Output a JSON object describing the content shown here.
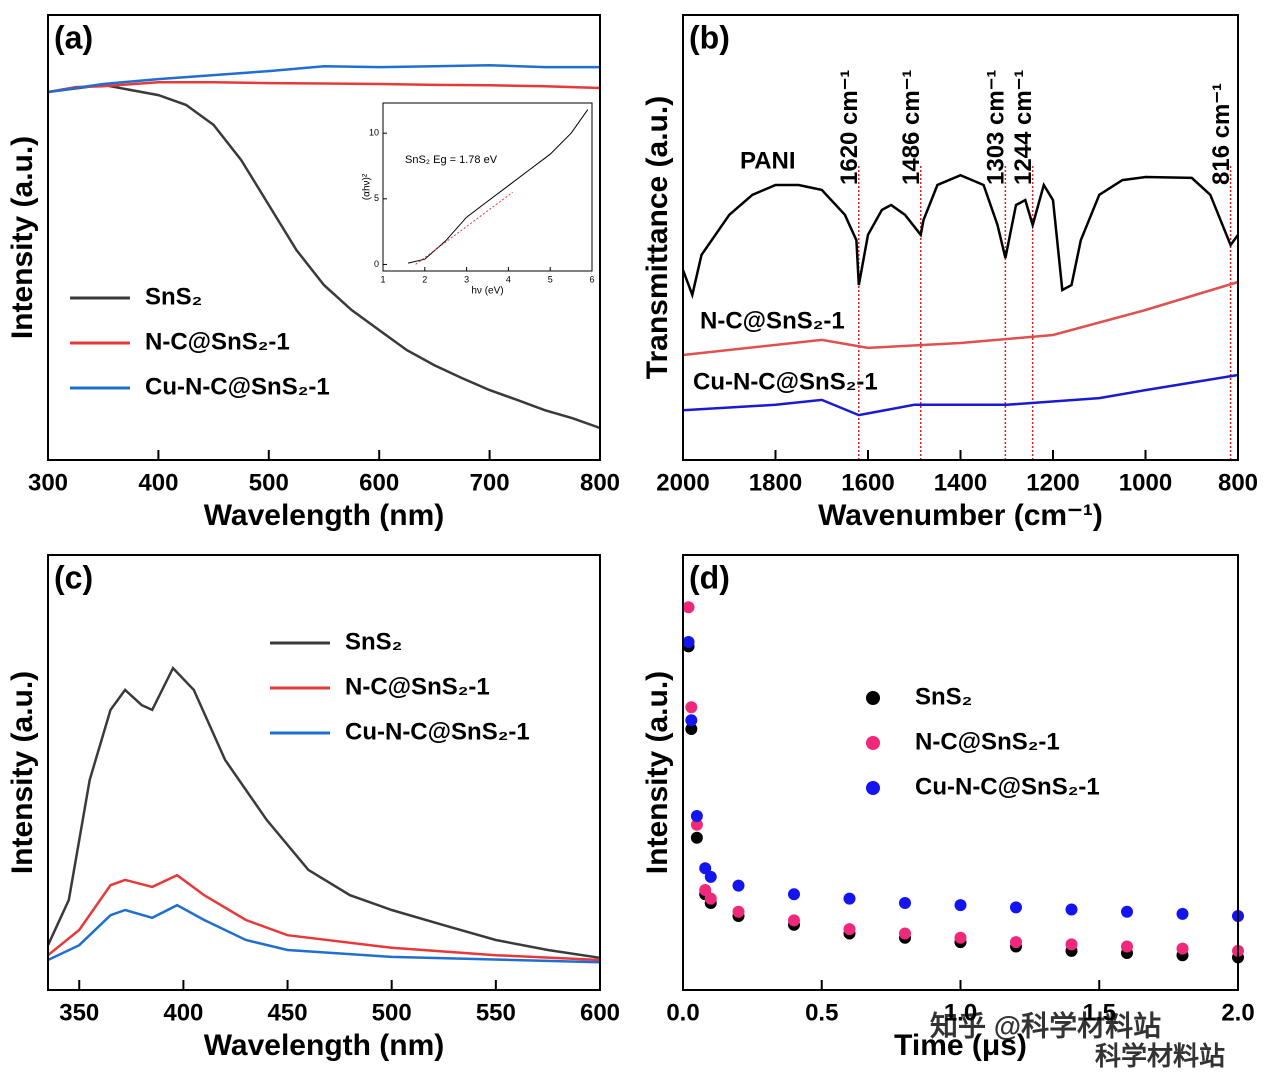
{
  "chart_data": [
    {
      "type": "line",
      "label": "(a)",
      "xlabel": "Wavelength (nm)",
      "ylabel": "Intensity (a.u.)",
      "xlim": [
        300,
        800
      ],
      "ylim": [
        0,
        100
      ],
      "xticks": [
        300,
        400,
        500,
        600,
        700,
        800
      ],
      "legend": "lower left",
      "series": [
        {
          "name": "SnS₂",
          "color": "#3a3a3a",
          "x": [
            300,
            350,
            400,
            425,
            450,
            475,
            500,
            525,
            550,
            575,
            600,
            625,
            650,
            675,
            700,
            725,
            750,
            775,
            800
          ],
          "values": [
            82.7,
            84.3,
            82,
            79.8,
            75.3,
            67.4,
            57.3,
            47.2,
            39.3,
            33.7,
            29.2,
            24.7,
            21.3,
            18.4,
            15.7,
            13.5,
            11.2,
            9.4,
            7.2
          ]
        },
        {
          "name": "N-C@SnS₂-1",
          "color": "#e8393a",
          "x": [
            300,
            325,
            350,
            400,
            450,
            500,
            550,
            600,
            650,
            700,
            750,
            800
          ],
          "values": [
            82.7,
            83.8,
            84,
            84.9,
            84.9,
            84.7,
            84.6,
            84.5,
            84.3,
            84.2,
            84,
            83.6
          ]
        },
        {
          "name": "Cu-N-C@SnS₂-1",
          "color": "#1f6fd1",
          "x": [
            300,
            350,
            400,
            450,
            500,
            550,
            600,
            650,
            700,
            750,
            800
          ],
          "values": [
            82.7,
            84.5,
            85.6,
            86.5,
            87.4,
            88.5,
            88.3,
            88.5,
            88.7,
            88.3,
            88.3
          ]
        }
      ]
    },
    {
      "type": "line",
      "label": "(b)",
      "xlabel": "Wavenumber (cm⁻¹)",
      "ylabel": "Transmittance (a.u.)",
      "xlim": [
        2000,
        800
      ],
      "ylim": [
        0,
        100
      ],
      "xticks": [
        2000,
        1800,
        1600,
        1400,
        1200,
        1000,
        800
      ],
      "legend": "beside lines",
      "annotations": [
        {
          "x": 1620,
          "text": "1620 cm⁻¹"
        },
        {
          "x": 1486,
          "text": "1486 cm⁻¹"
        },
        {
          "x": 1303,
          "text": "1303 cm⁻¹"
        },
        {
          "x": 1244,
          "text": "1244 cm⁻¹"
        },
        {
          "x": 816,
          "text": "816 cm⁻¹"
        }
      ],
      "series": [
        {
          "name": "PANI",
          "color": "#000000",
          "x": [
            2000,
            1980,
            1960,
            1900,
            1850,
            1800,
            1750,
            1700,
            1650,
            1625,
            1620,
            1600,
            1570,
            1550,
            1520,
            1486,
            1480,
            1450,
            1400,
            1350,
            1320,
            1303,
            1280,
            1260,
            1244,
            1220,
            1200,
            1180,
            1160,
            1140,
            1100,
            1050,
            1000,
            900,
            860,
            816,
            800
          ],
          "values": [
            42.7,
            37.1,
            46.1,
            55.1,
            59.6,
            61.8,
            61.8,
            60.7,
            55.1,
            49.4,
            39.3,
            50.6,
            56.2,
            57.3,
            55.1,
            50.6,
            53.9,
            61.8,
            64,
            61.8,
            52.8,
            45.4,
            57.3,
            58.4,
            52.8,
            61.8,
            58.4,
            38.2,
            39.3,
            49.4,
            59.6,
            62.9,
            63.6,
            63.4,
            59.6,
            48.3,
            50.6
          ]
        },
        {
          "name": "N-C@SnS₂-1",
          "color": "#e05050",
          "x": [
            2000,
            1700,
            1600,
            1400,
            1200,
            1000,
            800
          ],
          "values": [
            23.6,
            27,
            25.2,
            26.3,
            28.1,
            33.7,
            40
          ]
        },
        {
          "name": "Cu-N-C@SnS₂-1",
          "color": "#1a1ad0",
          "x": [
            2000,
            1800,
            1700,
            1620,
            1500,
            1300,
            1100,
            1000,
            800
          ],
          "values": [
            11.2,
            12.4,
            13.5,
            10.1,
            12.4,
            12.4,
            13.9,
            15.7,
            19.1
          ]
        }
      ]
    },
    {
      "type": "line",
      "label": "(c)",
      "xlabel": "Wavelength (nm)",
      "ylabel": "Intensity (a.u.)",
      "xlim": [
        335,
        600
      ],
      "ylim": [
        0,
        100
      ],
      "xticks": [
        350,
        400,
        450,
        500,
        550,
        600
      ],
      "legend": "upper right",
      "series": [
        {
          "name": "SnS₂",
          "color": "#3a3a3a",
          "x": [
            335,
            345,
            355,
            365,
            372,
            380,
            385,
            395,
            405,
            420,
            440,
            460,
            480,
            500,
            525,
            550,
            575,
            600
          ],
          "values": [
            10.3,
            20.7,
            48.3,
            64.4,
            69,
            65.5,
            64.4,
            74,
            69,
            52.9,
            39.1,
            27.6,
            21.8,
            18.4,
            14.9,
            11.5,
            9.2,
            7.4
          ]
        },
        {
          "name": "N-C@SnS₂-1",
          "color": "#e8393a",
          "x": [
            335,
            350,
            365,
            372,
            385,
            397,
            410,
            430,
            450,
            500,
            550,
            600
          ],
          "values": [
            8,
            13.8,
            24.1,
            25.3,
            23.7,
            26.4,
            21.8,
            16.1,
            12.6,
            9.7,
            8,
            6.9
          ]
        },
        {
          "name": "Cu-N-C@SnS₂-1",
          "color": "#1f6fd1",
          "x": [
            335,
            350,
            365,
            372,
            385,
            397,
            410,
            430,
            450,
            500,
            600
          ],
          "values": [
            6.9,
            10.3,
            17.2,
            18.4,
            16.6,
            19.5,
            16.1,
            11.5,
            9.2,
            7.6,
            6.4
          ]
        }
      ]
    },
    {
      "type": "scatter",
      "label": "(d)",
      "xlabel": "Time (μs)",
      "ylabel": "Intensity (a.u.)",
      "xlim": [
        0,
        2
      ],
      "ylim": [
        0,
        100
      ],
      "xticks": [
        {
          "value": 0,
          "label": "0.0"
        },
        0.5,
        {
          "value": 1,
          "label": "1.0"
        },
        1.5,
        {
          "value": 2,
          "label": "2.0"
        }
      ],
      "legend": "center",
      "series": [
        {
          "name": "SnS₂",
          "color": "#000000",
          "x": [
            0.02,
            0.03,
            0.05,
            0.08,
            0.1,
            0.2,
            0.4,
            0.6,
            0.8,
            1.0,
            1.2,
            1.4,
            1.6,
            1.8,
            2.0
          ],
          "values": [
            79,
            60,
            35,
            22,
            20,
            17,
            15,
            13,
            12,
            11,
            10,
            9,
            8.5,
            8,
            7.5
          ]
        },
        {
          "name": "N-C@SnS₂-1",
          "color": "#f0287a",
          "x": [
            0.02,
            0.03,
            0.05,
            0.08,
            0.1,
            0.2,
            0.4,
            0.6,
            0.8,
            1.0,
            1.2,
            1.4,
            1.6,
            1.8,
            2.0
          ],
          "values": [
            88,
            65,
            38,
            23,
            21,
            18,
            16,
            14,
            13,
            12,
            11,
            10.5,
            10,
            9.5,
            9
          ]
        },
        {
          "name": "Cu-N-C@SnS₂-1",
          "color": "#1414f0",
          "x": [
            0.02,
            0.03,
            0.05,
            0.08,
            0.1,
            0.2,
            0.4,
            0.6,
            0.8,
            1.0,
            1.2,
            1.4,
            1.6,
            1.8,
            2.0
          ],
          "values": [
            80,
            62,
            40,
            28,
            26,
            24,
            22,
            21,
            20,
            19.5,
            19,
            18.5,
            18,
            17.5,
            17
          ]
        }
      ]
    },
    {
      "type": "line",
      "title": "SnS₂ Eg = 1.78 eV",
      "xlabel": "hν (eV)",
      "ylabel": "(αhν)²",
      "xlim": [
        1,
        6
      ],
      "ylim": [
        -0.5,
        12.3
      ],
      "xticks": [
        1,
        2,
        3,
        4,
        5,
        6
      ],
      "yticks": [
        0,
        5,
        10
      ],
      "series": [
        {
          "color": "#000000",
          "x": [
            1.6,
            2,
            2.5,
            3,
            3.5,
            4,
            4.5,
            5,
            5.5,
            5.9
          ],
          "values": [
            0.1,
            0.4,
            1.8,
            3.6,
            4.8,
            6,
            7.2,
            8.4,
            10,
            11.8
          ]
        },
        {
          "color": "#e8393a",
          "dash": true,
          "x": [
            1.78,
            4.1
          ],
          "values": [
            0,
            5.5
          ]
        }
      ]
    }
  ],
  "watermark": [
    "知乎 @科学材料站",
    "科学材料站"
  ]
}
